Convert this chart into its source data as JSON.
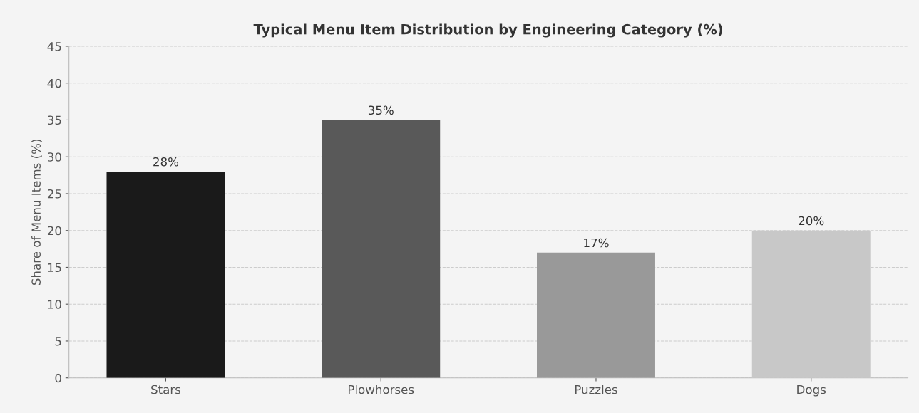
{
  "chart_data": {
    "type": "bar",
    "title": "Typical Menu Item Distribution by Engineering Category (%)",
    "ylabel": "Share of Menu Items (%)",
    "categories": [
      "Stars",
      "Plowhorses",
      "Puzzles",
      "Dogs"
    ],
    "values": [
      28,
      35,
      17,
      20
    ],
    "colors": [
      "#1a1a1a",
      "#595959",
      "#999999",
      "#c8c8c8"
    ],
    "value_labels": [
      "28%",
      "35%",
      "17%",
      "20%"
    ],
    "ylim": [
      0,
      45
    ],
    "yticks": [
      0,
      5,
      10,
      15,
      20,
      25,
      30,
      35,
      40,
      45
    ],
    "grid": "y",
    "legend": false
  }
}
